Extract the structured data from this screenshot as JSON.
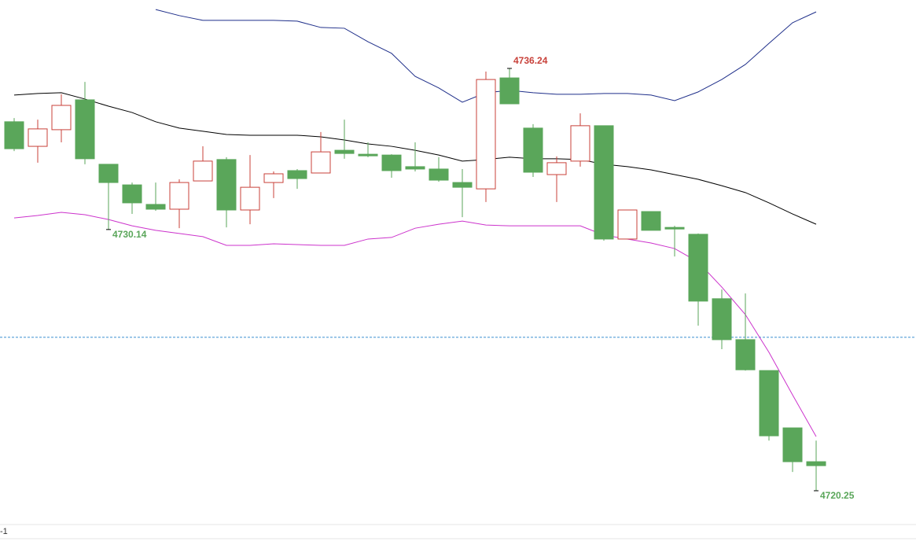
{
  "chart_data": {
    "type": "candlestick",
    "ylim": [
      4718.97,
      4738.83
    ],
    "up_color": "#c8413a",
    "down_color": "#5aa65a",
    "open": [
      4734.22,
      4733.29,
      4733.92,
      4735.05,
      4732.61,
      4731.83,
      4731.09,
      4730.91,
      4731.98,
      4732.79,
      4730.88,
      4731.92,
      4732.37,
      4732.28,
      4733.14,
      4732.99,
      4732.96,
      4732.52,
      4732.43,
      4731.92,
      4731.68,
      4735.88,
      4733.98,
      4732.22,
      4732.73,
      4734.07,
      4729.78,
      4730.82,
      4730.22,
      4729.96,
      4727.52,
      4725.97,
      4724.8,
      4722.63,
      4721.35
    ],
    "high": [
      4734.36,
      4734.3,
      4735.26,
      4735.73,
      4732.61,
      4731.92,
      4731.92,
      4732.04,
      4733.29,
      4732.88,
      4732.96,
      4732.34,
      4732.43,
      4733.83,
      4734.3,
      4733.44,
      4732.99,
      4733.44,
      4732.88,
      4732.43,
      4736.12,
      4736.24,
      4734.13,
      4732.91,
      4734.54,
      4734.07,
      4730.88,
      4730.82,
      4730.28,
      4729.99,
      4727.87,
      4727.72,
      4724.8,
      4722.63,
      4722.15
    ],
    "low": [
      4733.11,
      4732.67,
      4733.44,
      4732.61,
      4730.14,
      4730.73,
      4730.85,
      4730.19,
      4731.98,
      4730.22,
      4730.34,
      4731.33,
      4731.68,
      4732.28,
      4732.82,
      4732.88,
      4732.1,
      4732.34,
      4731.95,
      4730.61,
      4731.18,
      4734.9,
      4732.13,
      4731.18,
      4732.52,
      4729.72,
      4729.78,
      4730.11,
      4729.12,
      4726.5,
      4725.61,
      4724.8,
      4722.15,
      4720.96,
      4720.25
    ],
    "close": [
      4733.2,
      4733.95,
      4734.84,
      4732.82,
      4731.92,
      4731.15,
      4730.91,
      4731.92,
      4732.73,
      4730.88,
      4731.74,
      4732.25,
      4732.07,
      4733.08,
      4733.02,
      4732.93,
      4732.37,
      4732.43,
      4732.01,
      4731.74,
      4735.82,
      4734.9,
      4732.31,
      4732.67,
      4734.07,
      4729.78,
      4730.88,
      4730.11,
      4730.16,
      4727.43,
      4725.97,
      4724.83,
      4722.33,
      4721.35,
      4721.2
    ],
    "series": [
      {
        "color": "#1f2f8a",
        "values": [
          null,
          null,
          null,
          null,
          null,
          null,
          4738.47,
          4738.24,
          4738.06,
          4738.06,
          4738.06,
          4738.06,
          4738.03,
          4737.79,
          4737.76,
          4737.25,
          4736.81,
          4735.94,
          4735.5,
          4734.96,
          4735.32,
          4735.41,
          4735.32,
          4735.26,
          4735.26,
          4735.29,
          4735.29,
          4735.23,
          4735.02,
          4735.35,
          4735.82,
          4736.39,
          4737.19,
          4737.97,
          4738.38
        ]
      },
      {
        "color": "#000000",
        "values": [
          4735.23,
          4735.29,
          4735.32,
          4735.08,
          4734.81,
          4734.57,
          4734.22,
          4733.98,
          4733.86,
          4733.74,
          4733.71,
          4733.71,
          4733.71,
          4733.65,
          4733.53,
          4733.38,
          4733.29,
          4733.14,
          4732.96,
          4732.73,
          4732.79,
          4732.88,
          4732.82,
          4732.82,
          4732.79,
          4732.61,
          4732.52,
          4732.4,
          4732.22,
          4732.04,
          4731.8,
          4731.54,
          4731.15,
          4730.73,
          4730.34
        ]
      },
      {
        "color": "#cc33cc",
        "values": [
          4730.58,
          4730.67,
          4730.79,
          4730.7,
          4730.52,
          4730.28,
          4730.11,
          4729.99,
          4729.87,
          4729.54,
          4729.54,
          4729.6,
          4729.57,
          4729.54,
          4729.54,
          4729.78,
          4729.84,
          4730.19,
          4730.34,
          4730.46,
          4730.31,
          4730.28,
          4730.28,
          4730.28,
          4730.28,
          4729.93,
          4729.78,
          4729.63,
          4729.42,
          4728.91,
          4727.96,
          4726.92,
          4725.49,
          4723.88,
          4722.3
        ]
      }
    ],
    "reference_line": 4726.06,
    "reference_color": "#3a8fd0",
    "bottom_label": "-1"
  }
}
